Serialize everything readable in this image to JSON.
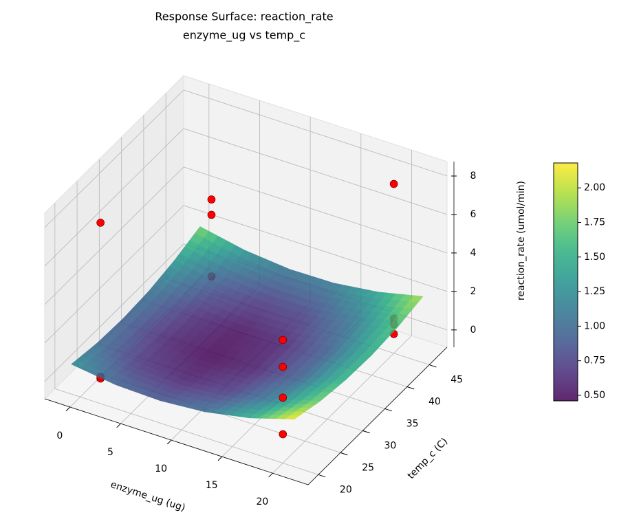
{
  "chart_data": {
    "type": "surface",
    "title": "Response Surface: reaction_rate",
    "subtitle": "enzyme_ug vs temp_c",
    "xlabel": "enzyme_ug (ug)",
    "ylabel": "temp_c (C)",
    "zlabel": "reaction_rate (umol/min)",
    "xlim": [
      -2.5,
      23.5
    ],
    "ylim": [
      17.7,
      49
    ],
    "zlim": [
      -0.9,
      8.75
    ],
    "xticks": [
      0,
      5,
      10,
      15,
      20
    ],
    "yticks": [
      20,
      25,
      30,
      35,
      40,
      45
    ],
    "zticks": [
      0,
      2,
      4,
      6,
      8
    ],
    "grid": true,
    "surface": {
      "x": [
        0,
        4.4,
        8.8,
        13.2,
        17.6,
        22
      ],
      "y": [
        18,
        23.8,
        29.6,
        35.4,
        41.2,
        47
      ],
      "z": [
        [
          1.26,
          0.94,
          0.87,
          1.05,
          1.49,
          2.18
        ],
        [
          1.03,
          0.68,
          0.58,
          0.73,
          1.14,
          1.79
        ],
        [
          0.97,
          0.59,
          0.46,
          0.58,
          0.95,
          1.58
        ],
        [
          1.07,
          0.66,
          0.5,
          0.59,
          0.93,
          1.53
        ],
        [
          1.35,
          0.9,
          0.71,
          0.77,
          1.09,
          1.65
        ],
        [
          1.79,
          1.32,
          1.09,
          1.12,
          1.41,
          1.94
        ]
      ],
      "colormap": "viridis",
      "clim": [
        0.46,
        2.18
      ],
      "cbar_ticks": [
        {
          "value": 0.5,
          "label": "0.50"
        },
        {
          "value": 0.75,
          "label": "0.75"
        },
        {
          "value": 1.0,
          "label": "1.00"
        },
        {
          "value": 1.25,
          "label": "1.25"
        },
        {
          "value": 1.5,
          "label": "1.50"
        },
        {
          "value": 1.75,
          "label": "1.75"
        },
        {
          "value": 2.0,
          "label": "2.00"
        }
      ]
    },
    "points": {
      "color": "#ff0000",
      "x": [
        2,
        2,
        2,
        2,
        2,
        2,
        20,
        20,
        20,
        20,
        20,
        20,
        20,
        20
      ],
      "y": [
        20,
        20,
        20,
        45,
        45,
        45,
        20,
        20,
        20,
        20,
        45,
        45,
        45,
        45
      ],
      "z": [
        0.4,
        0.5,
        8.5,
        4.0,
        3.2,
        0.0,
        5.5,
        4.1,
        2.5,
        0.6,
        7.9,
        0.9,
        0.6,
        0.1
      ]
    }
  }
}
